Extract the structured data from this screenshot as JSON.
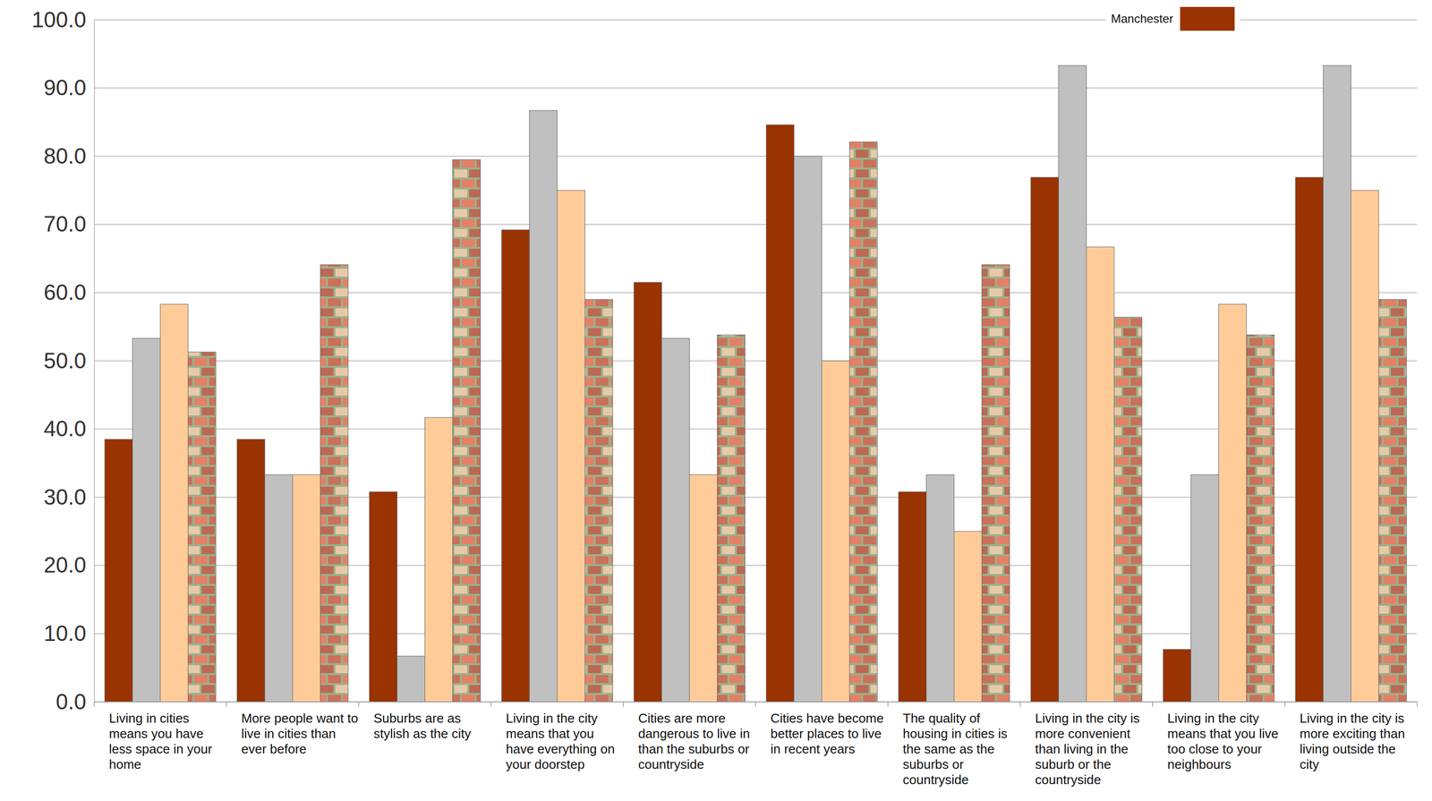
{
  "chart_data": {
    "type": "bar",
    "categories": [
      "Living in cities means you have less space in your home",
      "More people want to live in cities than ever before",
      "Suburbs are as stylish as the city",
      "Living in the city means that you have everything on your doorstep",
      "Cities are more dangerous to live in than the suburbs or countryside",
      "Cities have become better places to live in recent years",
      "The quality of housing in cities is the same as the suburbs or countryside",
      "Living in the city is more convenient than living in the suburb or the countryside",
      "Living in the city means that you live too close to your neighbours",
      "Living in the city is more exciting than living outside the city"
    ],
    "series": [
      {
        "name": "Manchester",
        "color": "#993300",
        "values": [
          38.5,
          38.5,
          30.8,
          69.2,
          61.5,
          84.6,
          30.8,
          76.9,
          7.7,
          76.9
        ]
      },
      {
        "color": "#c0c0c0",
        "values": [
          53.3,
          33.3,
          6.7,
          86.7,
          53.3,
          80.0,
          33.3,
          93.3,
          33.3,
          93.3
        ]
      },
      {
        "color": "#ffcc99",
        "values": [
          58.3,
          33.3,
          41.7,
          75.0,
          33.3,
          50.0,
          25.0,
          66.7,
          58.3,
          75.0
        ]
      },
      {
        "color": "#c9715a",
        "values": [
          51.3,
          64.1,
          79.5,
          59.0,
          53.8,
          82.1,
          64.1,
          56.4,
          53.8,
          59.0
        ]
      }
    ],
    "ylim": [
      0,
      100
    ],
    "yticks": [
      {
        "value": 0,
        "label": "0.0"
      },
      {
        "value": 10,
        "label": "10.0"
      },
      {
        "value": 20,
        "label": "20.0"
      },
      {
        "value": 30,
        "label": "30.0"
      },
      {
        "value": 40,
        "label": "40.0"
      },
      {
        "value": 50,
        "label": "50.0"
      },
      {
        "value": 60,
        "label": "60.0"
      },
      {
        "value": 70,
        "label": "70.0"
      },
      {
        "value": 80,
        "label": "80.0"
      },
      {
        "value": 90,
        "label": "90.0"
      },
      {
        "value": 100,
        "label": "100.0"
      }
    ],
    "grid": true,
    "legend": "upper right"
  }
}
